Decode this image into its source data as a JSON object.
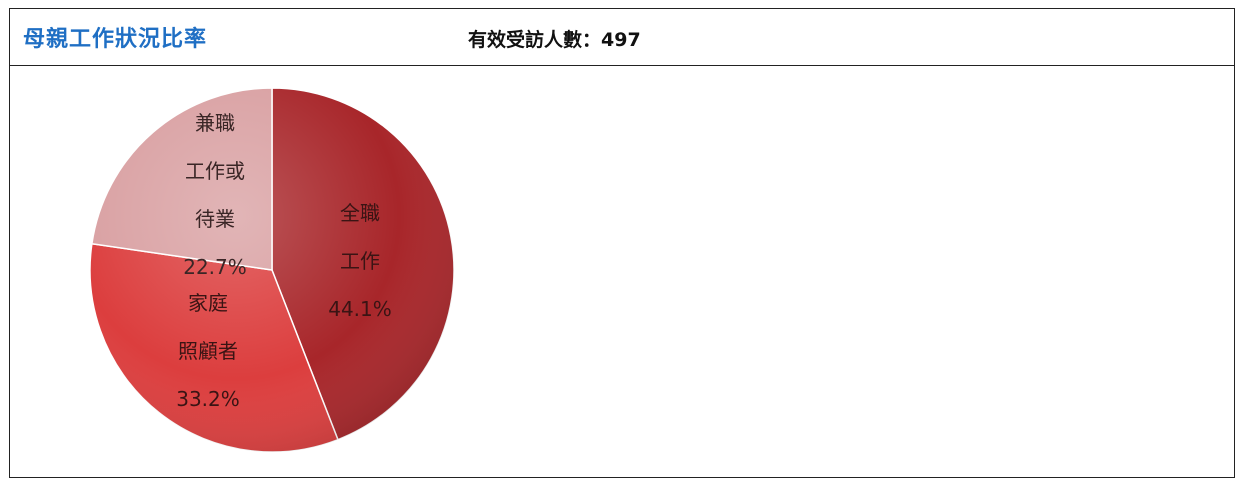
{
  "header": {
    "title": "母親工作狀況比率",
    "respondents_label": "有效受訪人數：",
    "respondents_value": "497"
  },
  "chart_data": {
    "type": "pie",
    "title": "母親工作狀況比率",
    "slices": [
      {
        "lines": [
          "全職",
          "工作"
        ],
        "value": 44.1,
        "value_label": "44.1%",
        "color": "#a8262a",
        "label_color": "#3a1414"
      },
      {
        "lines": [
          "家庭",
          "照顧者"
        ],
        "value": 33.2,
        "value_label": "33.2%",
        "color": "#dc3e3e",
        "label_color": "#3a1414"
      },
      {
        "lines": [
          "兼職",
          "工作或",
          "待業"
        ],
        "value": 22.7,
        "value_label": "22.7%",
        "color": "#d9a0a2",
        "label_color": "#3a2626"
      }
    ],
    "start_angle_deg": 0,
    "direction": "clockwise"
  }
}
